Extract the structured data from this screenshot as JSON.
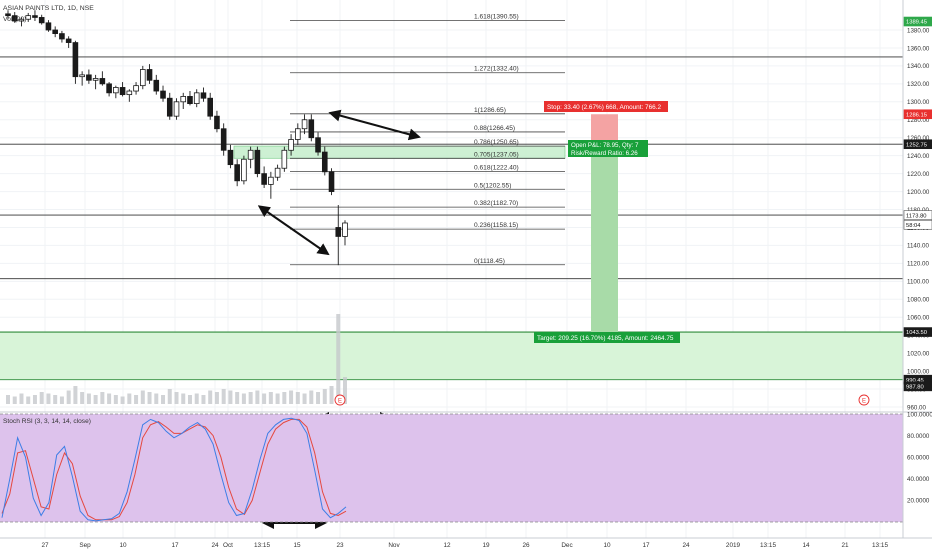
{
  "chart_data": {
    "type": "candlestick",
    "header": {
      "symbol_line": "ASIAN PAINTS LTD, 1D, NSE",
      "volume_line": "Vol (20)"
    },
    "price_axis": {
      "ticks": [
        1380.0,
        1360.0,
        1340.0,
        1320.0,
        1300.0,
        1280.0,
        1260.0,
        1240.0,
        1220.0,
        1200.0,
        1180.0,
        1160.0,
        1140.0,
        1120.0,
        1100.0,
        1080.0,
        1060.0,
        1040.0,
        1020.0,
        1000.0,
        980.0,
        960.0
      ],
      "ylim": [
        955,
        1402
      ],
      "badges": [
        {
          "value": 1389.45,
          "label": "1389.45",
          "color": "#2ea84a"
        },
        {
          "value": 1286.15,
          "label": "1286.15",
          "color": "#e8302f"
        },
        {
          "value": 1252.75,
          "label": "1252.75",
          "color": "#1a1a1a"
        },
        {
          "value": 1173.8,
          "label": "1173.80",
          "color": "#ffffff"
        },
        {
          "value": 1163,
          "label": "58:04",
          "color": "#ffffff"
        },
        {
          "value": 1043.5,
          "label": "1043.50",
          "color": "#1a1a1a"
        },
        {
          "value": 990.45,
          "label": "990.45",
          "color": "#1a1a1a"
        },
        {
          "value": 983,
          "label": "987.80",
          "color": "#1a1a1a"
        }
      ]
    },
    "x_axis": {
      "labels": [
        "27",
        "Sep",
        "10",
        "17",
        "24",
        "Oct",
        "13:15",
        "15",
        "23",
        "Nov",
        "12",
        "19",
        "26",
        "Dec",
        "10",
        "17",
        "24",
        "2019",
        "13:15",
        "14",
        "21",
        "13:15"
      ]
    },
    "fibonacci": [
      {
        "ratio": 1.618,
        "price": 1390.55,
        "label": "1.618(1390.55)"
      },
      {
        "ratio": 1.272,
        "price": 1332.4,
        "label": "1.272(1332.40)"
      },
      {
        "ratio": 1,
        "price": 1286.65,
        "label": "1(1286.65)"
      },
      {
        "ratio": 0.88,
        "price": 1266.45,
        "label": "0.88(1266.45)"
      },
      {
        "ratio": 0.786,
        "price": 1250.65,
        "label": "0.786(1250.65)"
      },
      {
        "ratio": 0.705,
        "price": 1237.05,
        "label": "0.705(1237.05)"
      },
      {
        "ratio": 0.618,
        "price": 1222.4,
        "label": "0.618(1222.40)"
      },
      {
        "ratio": 0.5,
        "price": 1202.55,
        "label": "0.5(1202.55)"
      },
      {
        "ratio": 0.382,
        "price": 1182.7,
        "label": "0.382(1182.70)"
      },
      {
        "ratio": 0.236,
        "price": 1158.15,
        "label": "0.236(1158.15)"
      },
      {
        "ratio": 0,
        "price": 1118.45,
        "label": "0(1118.45)"
      }
    ],
    "horizontal_lines": [
      1350,
      1252.75,
      1173.8,
      1103,
      1043.5,
      990.45
    ],
    "position": {
      "stop_label": "Stop: 33.40 (2.67%) 668, Amount: 766.2",
      "pnl_line1": "Open P&L: 78.95, Qty: 7",
      "pnl_line2": "Risk/Reward Ratio: 6.26",
      "target_label": "Target: 209.25 (16.70%) 4185, Amount: 2464.75",
      "entry": 1252.75,
      "stop": 1286.15,
      "current": 1173.8,
      "target": 1043.5
    },
    "zones": [
      {
        "name": "fib-zone",
        "from": 1237.05,
        "to": 1250.65,
        "color": "#c8efcf"
      },
      {
        "name": "support-zone",
        "from": 990.45,
        "to": 1043.5,
        "color": "#d8f4d8"
      }
    ],
    "candles": [
      [
        1398,
        1402,
        1392,
        1396
      ],
      [
        1396,
        1400,
        1388,
        1390
      ],
      [
        1390,
        1394,
        1384,
        1392
      ],
      [
        1392,
        1399,
        1389,
        1396
      ],
      [
        1396,
        1402,
        1390,
        1394
      ],
      [
        1394,
        1397,
        1386,
        1388
      ],
      [
        1388,
        1391,
        1378,
        1380
      ],
      [
        1380,
        1384,
        1372,
        1376
      ],
      [
        1376,
        1379,
        1366,
        1370
      ],
      [
        1370,
        1373,
        1360,
        1366
      ],
      [
        1366,
        1368,
        1320,
        1328
      ],
      [
        1328,
        1334,
        1318,
        1330
      ],
      [
        1330,
        1336,
        1320,
        1324
      ],
      [
        1324,
        1330,
        1314,
        1326
      ],
      [
        1326,
        1334,
        1318,
        1320
      ],
      [
        1320,
        1322,
        1306,
        1310
      ],
      [
        1310,
        1318,
        1304,
        1316
      ],
      [
        1316,
        1322,
        1306,
        1308
      ],
      [
        1308,
        1314,
        1300,
        1312
      ],
      [
        1312,
        1322,
        1308,
        1318
      ],
      [
        1318,
        1340,
        1314,
        1336
      ],
      [
        1336,
        1342,
        1320,
        1324
      ],
      [
        1324,
        1330,
        1308,
        1312
      ],
      [
        1312,
        1318,
        1300,
        1304
      ],
      [
        1304,
        1310,
        1280,
        1284
      ],
      [
        1284,
        1304,
        1280,
        1300
      ],
      [
        1300,
        1310,
        1292,
        1306
      ],
      [
        1306,
        1312,
        1296,
        1298
      ],
      [
        1298,
        1314,
        1294,
        1310
      ],
      [
        1310,
        1316,
        1300,
        1304
      ],
      [
        1304,
        1310,
        1280,
        1284
      ],
      [
        1284,
        1290,
        1266,
        1270
      ],
      [
        1270,
        1276,
        1240,
        1246
      ],
      [
        1246,
        1252,
        1226,
        1230
      ],
      [
        1230,
        1236,
        1206,
        1212
      ],
      [
        1212,
        1240,
        1208,
        1236
      ],
      [
        1236,
        1250,
        1226,
        1246
      ],
      [
        1246,
        1250,
        1216,
        1220
      ],
      [
        1220,
        1228,
        1204,
        1208
      ],
      [
        1208,
        1222,
        1192,
        1216
      ],
      [
        1216,
        1230,
        1212,
        1226
      ],
      [
        1226,
        1250,
        1222,
        1246
      ],
      [
        1246,
        1264,
        1240,
        1258
      ],
      [
        1258,
        1276,
        1252,
        1270
      ],
      [
        1270,
        1286,
        1264,
        1280
      ],
      [
        1280,
        1286,
        1256,
        1260
      ],
      [
        1260,
        1266,
        1240,
        1244
      ],
      [
        1244,
        1250,
        1218,
        1222
      ],
      [
        1222,
        1226,
        1196,
        1200
      ],
      [
        1160,
        1185,
        1118,
        1150
      ],
      [
        1150,
        1168,
        1140,
        1165
      ]
    ],
    "volume": [
      6,
      5,
      7,
      5,
      6,
      8,
      7,
      6,
      5,
      9,
      12,
      8,
      7,
      6,
      8,
      7,
      6,
      5,
      7,
      6,
      9,
      8,
      7,
      6,
      10,
      8,
      7,
      6,
      7,
      6,
      9,
      8,
      10,
      9,
      8,
      7,
      8,
      9,
      7,
      8,
      7,
      8,
      9,
      8,
      7,
      9,
      8,
      10,
      12,
      60,
      18
    ],
    "rsi": {
      "label": "Stoch RSI (3, 3, 14, 14, close)",
      "ticks": [
        100,
        80,
        60,
        40,
        20
      ],
      "tick_labels": [
        "100.0000",
        "80.0000",
        "60.0000",
        "40.0000",
        "20.0000"
      ],
      "k": [
        4,
        40,
        78,
        60,
        22,
        6,
        18,
        62,
        70,
        42,
        10,
        2,
        1,
        2,
        3,
        8,
        28,
        58,
        90,
        95,
        92,
        84,
        78,
        82,
        88,
        92,
        86,
        72,
        44,
        18,
        6,
        8,
        30,
        58,
        82,
        90,
        95,
        96,
        94,
        82,
        48,
        12,
        4,
        8,
        14
      ],
      "d": [
        8,
        26,
        64,
        66,
        40,
        14,
        12,
        44,
        64,
        54,
        24,
        6,
        2,
        2,
        2,
        5,
        18,
        44,
        78,
        90,
        93,
        88,
        82,
        82,
        86,
        90,
        88,
        80,
        60,
        32,
        12,
        7,
        20,
        46,
        72,
        86,
        92,
        95,
        95,
        88,
        64,
        28,
        8,
        6,
        10
      ]
    }
  }
}
